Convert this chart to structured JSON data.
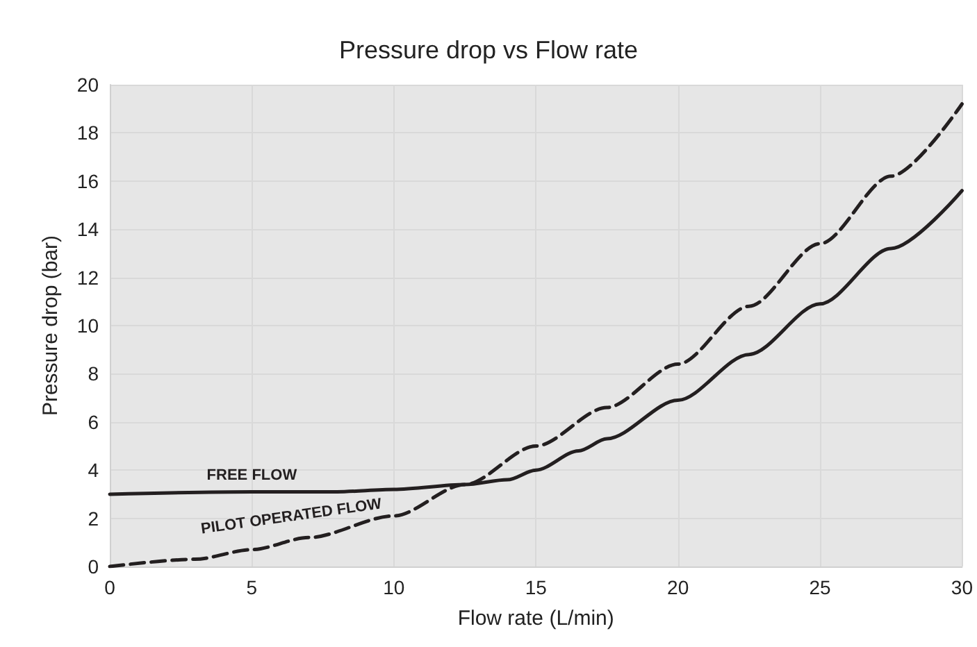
{
  "chart_data": {
    "type": "line",
    "title": "Pressure drop vs Flow rate",
    "xlabel": "Flow rate (L/min)",
    "ylabel": "Pressure drop (bar)",
    "xlim": [
      0,
      30
    ],
    "xticks": [
      0,
      5,
      10,
      15,
      20,
      25,
      30
    ],
    "ylim": [
      0,
      20
    ],
    "yticks": [
      0,
      2,
      4,
      6,
      8,
      10,
      12,
      14,
      16,
      18,
      20
    ],
    "grid": true,
    "legend": false,
    "marker": "none",
    "series": [
      {
        "name": "FREE FLOW",
        "color": "#231f20",
        "line_style": "solid",
        "x": [
          0,
          5,
          8,
          10,
          12.5,
          14,
          15,
          16.5,
          17.5,
          20,
          22.5,
          25,
          27.5,
          30
        ],
        "values": [
          3.0,
          3.1,
          3.1,
          3.2,
          3.4,
          3.6,
          4.0,
          4.8,
          5.3,
          6.9,
          8.8,
          10.9,
          13.2,
          15.6
        ]
      },
      {
        "name": "PILOT OPERATED FLOW",
        "color": "#231f20",
        "line_style": "dashed",
        "x": [
          0,
          3,
          5,
          7,
          10,
          12.5,
          15,
          17.5,
          20,
          22.5,
          25,
          27.5,
          30
        ],
        "values": [
          0,
          0.3,
          0.7,
          1.2,
          2.1,
          3.4,
          5.0,
          6.6,
          8.4,
          10.8,
          13.4,
          16.2,
          19.2
        ]
      }
    ]
  }
}
